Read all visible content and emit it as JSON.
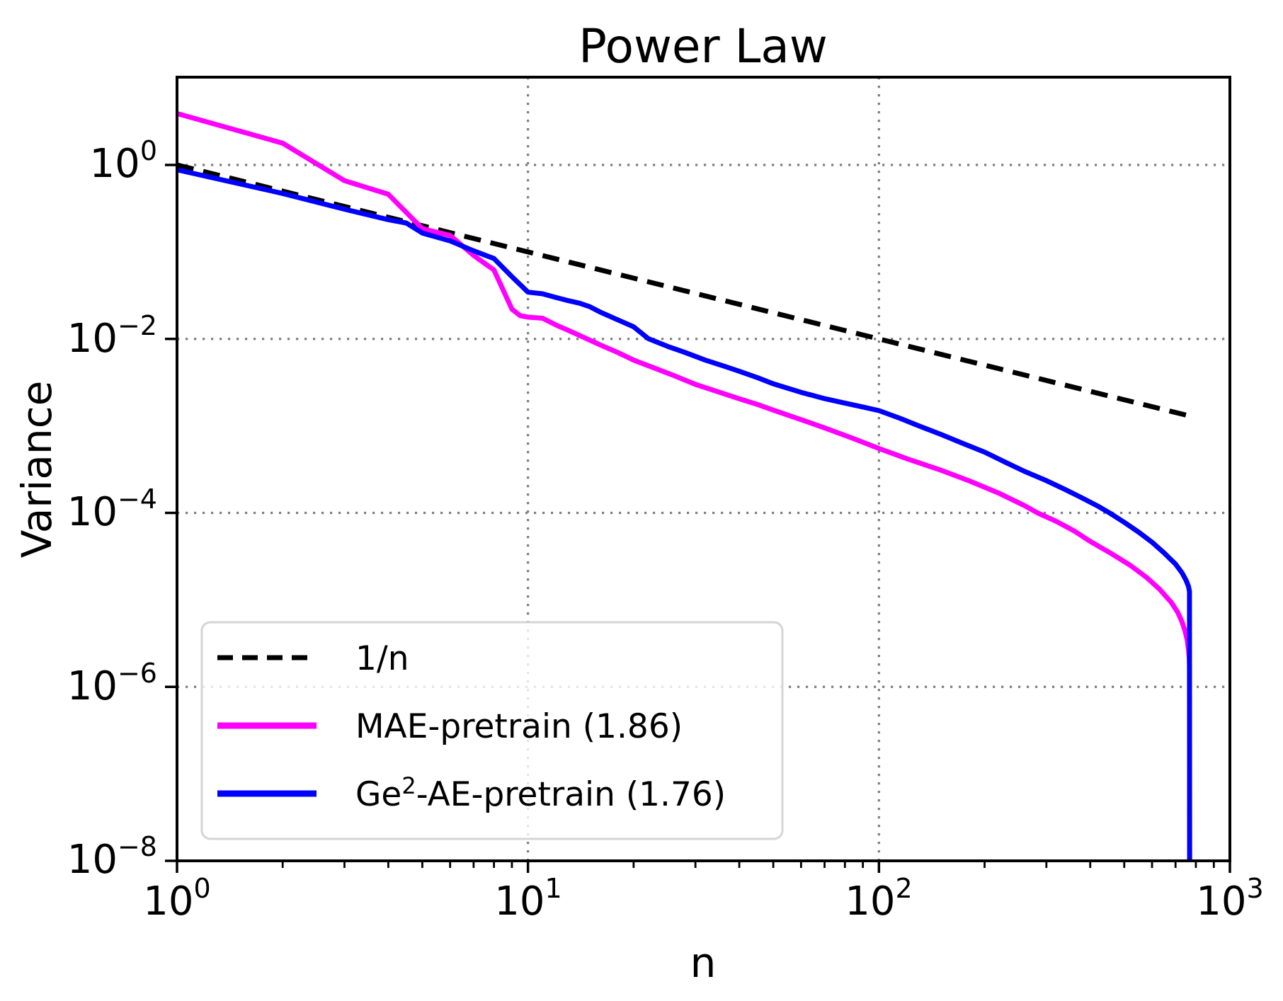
{
  "figure": {
    "title": "Power Law",
    "xlabel": "n",
    "ylabel": "Variance"
  },
  "chart_data": {
    "type": "line",
    "title": "Power Law",
    "xlabel": "n",
    "ylabel": "Variance",
    "x_scale": "log",
    "y_scale": "log",
    "xlim": [
      1,
      1000
    ],
    "ylim": [
      1e-08,
      10.5
    ],
    "grid": "dotted",
    "grid_color": "#7f7f7f",
    "legend_position": "lower left",
    "x_ticks": [
      {
        "base": "10",
        "exp": "0",
        "value": 1
      },
      {
        "base": "10",
        "exp": "1",
        "value": 10
      },
      {
        "base": "10",
        "exp": "2",
        "value": 100
      },
      {
        "base": "10",
        "exp": "3",
        "value": 1000
      }
    ],
    "y_ticks": [
      {
        "base": "10",
        "exp": "0",
        "value": 1
      },
      {
        "base": "10",
        "exp": "−2",
        "value": 0.01
      },
      {
        "base": "10",
        "exp": "−4",
        "value": 0.0001
      },
      {
        "base": "10",
        "exp": "−6",
        "value": 1e-06
      },
      {
        "base": "10",
        "exp": "−8",
        "value": 1e-08
      }
    ],
    "series": [
      {
        "name": "1/n",
        "color": "#000000",
        "line_style": "dashed",
        "points": [
          [
            1,
            1.0
          ],
          [
            768,
            0.0013
          ]
        ]
      },
      {
        "name": "MAE-pretrain (1.86)",
        "fit_exponent": 1.86,
        "color": "#ff00ff",
        "line_style": "solid",
        "points": [
          [
            1,
            3.9
          ],
          [
            2,
            1.78
          ],
          [
            3,
            0.66
          ],
          [
            4,
            0.46
          ],
          [
            5,
            0.185
          ],
          [
            6,
            0.155
          ],
          [
            7,
            0.091
          ],
          [
            8,
            0.062
          ],
          [
            9,
            0.022
          ],
          [
            9.5,
            0.0185
          ],
          [
            10,
            0.0178
          ],
          [
            11,
            0.0173
          ],
          [
            12,
            0.0145
          ],
          [
            13,
            0.0126
          ],
          [
            14,
            0.011
          ],
          [
            16,
            0.0086
          ],
          [
            18,
            0.007
          ],
          [
            20,
            0.0057
          ],
          [
            23,
            0.0046
          ],
          [
            26,
            0.0038
          ],
          [
            30,
            0.003
          ],
          [
            35,
            0.00245
          ],
          [
            40,
            0.00205
          ],
          [
            45,
            0.00177
          ],
          [
            50,
            0.00152
          ],
          [
            60,
            0.00118
          ],
          [
            70,
            0.00095
          ],
          [
            85,
            0.00071
          ],
          [
            100,
            0.00055
          ],
          [
            120,
            0.00042
          ],
          [
            150,
            0.00031
          ],
          [
            180,
            0.000235
          ],
          [
            220,
            0.000168
          ],
          [
            260,
            0.000121
          ],
          [
            283,
            0.0001
          ],
          [
            320,
            8e-05
          ],
          [
            360,
            6.2e-05
          ],
          [
            400,
            4.7e-05
          ],
          [
            460,
            3.4e-05
          ],
          [
            520,
            2.5e-05
          ],
          [
            580,
            1.8e-05
          ],
          [
            630,
            1.33e-05
          ],
          [
            680,
            9.4e-06
          ],
          [
            710,
            7.2e-06
          ],
          [
            730,
            5.6e-06
          ],
          [
            745,
            4.4e-06
          ],
          [
            755,
            3.5e-06
          ],
          [
            762,
            2.7e-06
          ],
          [
            766,
            2.1e-06
          ],
          [
            767,
            1.7e-06
          ],
          [
            768,
            1e-09
          ]
        ]
      },
      {
        "name": "Ge2-AE-pretrain (1.76)",
        "name_pre": "Ge",
        "name_sup": "2",
        "name_post": "-AE-pretrain (1.76)",
        "fit_exponent": 1.76,
        "color": "#0000ff",
        "line_style": "solid",
        "points": [
          [
            1,
            0.88
          ],
          [
            2,
            0.47
          ],
          [
            3,
            0.31
          ],
          [
            4,
            0.235
          ],
          [
            4.5,
            0.215
          ],
          [
            5,
            0.165
          ],
          [
            6,
            0.134
          ],
          [
            7,
            0.103
          ],
          [
            8,
            0.084
          ],
          [
            9,
            0.052
          ],
          [
            10,
            0.0345
          ],
          [
            11,
            0.033
          ],
          [
            12,
            0.03
          ],
          [
            13,
            0.0276
          ],
          [
            14,
            0.0258
          ],
          [
            15,
            0.0235
          ],
          [
            16,
            0.0205
          ],
          [
            18,
            0.0166
          ],
          [
            20,
            0.0138
          ],
          [
            22,
            0.0101
          ],
          [
            25,
            0.0082
          ],
          [
            28,
            0.007
          ],
          [
            32,
            0.0057
          ],
          [
            36,
            0.0049
          ],
          [
            40,
            0.00425
          ],
          [
            45,
            0.0036
          ],
          [
            50,
            0.00305
          ],
          [
            60,
            0.00243
          ],
          [
            70,
            0.00206
          ],
          [
            80,
            0.00183
          ],
          [
            90,
            0.00165
          ],
          [
            100,
            0.0015
          ],
          [
            115,
            0.00122
          ],
          [
            130,
            0.001
          ],
          [
            150,
            0.0008
          ],
          [
            175,
            0.00062
          ],
          [
            200,
            0.0005
          ],
          [
            230,
            0.00038
          ],
          [
            260,
            0.0003
          ],
          [
            300,
            0.000235
          ],
          [
            340,
            0.000185
          ],
          [
            380,
            0.000148
          ],
          [
            420,
            0.00012
          ],
          [
            454,
            0.0001
          ],
          [
            500,
            7.8e-05
          ],
          [
            550,
            6e-05
          ],
          [
            600,
            4.6e-05
          ],
          [
            650,
            3.45e-05
          ],
          [
            700,
            2.58e-05
          ],
          [
            730,
            2.05e-05
          ],
          [
            750,
            1.68e-05
          ],
          [
            762,
            1.43e-05
          ],
          [
            767,
            1.25e-05
          ],
          [
            768,
            1e-09
          ]
        ]
      }
    ]
  }
}
